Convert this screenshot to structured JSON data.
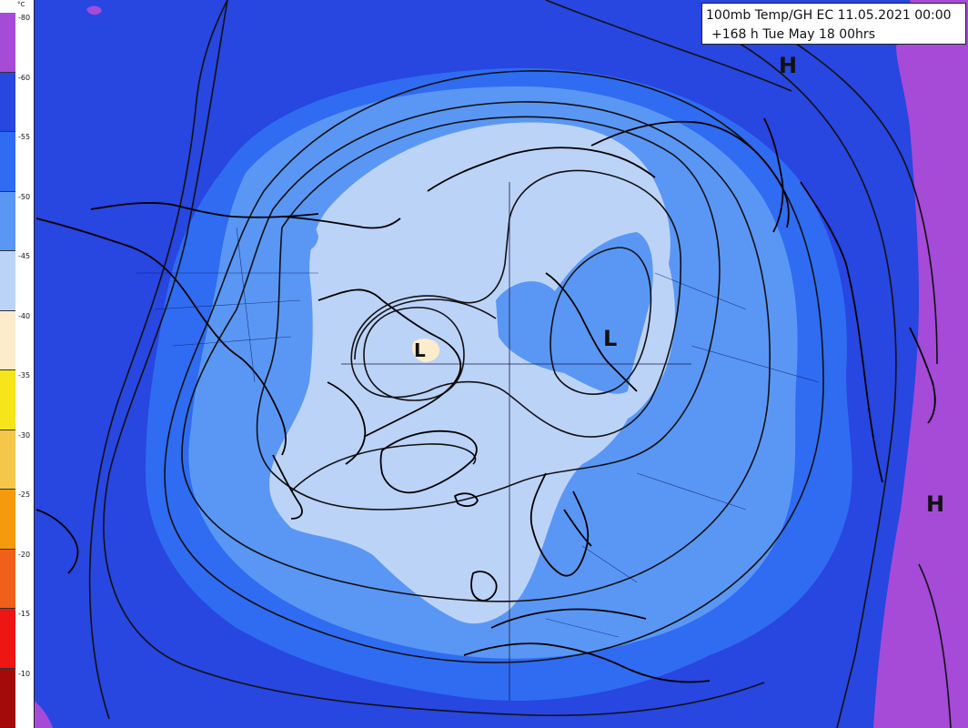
{
  "title": {
    "line1": "100mb Temp/GH EC 11.05.2021 00:00",
    "line2": "+168 h Tue May 18 00hrs"
  },
  "legend": {
    "unit": "°C",
    "bands": [
      {
        "tick": "-80",
        "color": "#a64ad8"
      },
      {
        "tick": "-60",
        "color": "#2846e0"
      },
      {
        "tick": "-55",
        "color": "#2f6cf2"
      },
      {
        "tick": "-50",
        "color": "#5a97f5"
      },
      {
        "tick": "-45",
        "color": "#bcd3f8"
      },
      {
        "tick": "-40",
        "color": "#fdeccb"
      },
      {
        "tick": "-35",
        "color": "#f6e51a"
      },
      {
        "tick": "-30",
        "color": "#f4c64a"
      },
      {
        "tick": "-25",
        "color": "#f59a0c"
      },
      {
        "tick": "-20",
        "color": "#f0601a"
      },
      {
        "tick": "-15",
        "color": "#ee1515"
      },
      {
        "tick": "-10",
        "color": "#a30a0a"
      }
    ]
  },
  "pressure_labels": [
    {
      "name": "high-north-pacific",
      "text": "H"
    },
    {
      "name": "high-west-pacific",
      "text": "H"
    },
    {
      "name": "low-siberia",
      "text": "L"
    },
    {
      "name": "low-canada",
      "text": "L"
    }
  ],
  "colors": {
    "ocean_base": "#2846e0",
    "band_minus55": "#2f6cf2",
    "band_minus50": "#5a97f5",
    "band_minus45": "#bcd3f8",
    "band_minus80": "#a64ad8",
    "contour": "#111111",
    "coast": "#000000"
  }
}
